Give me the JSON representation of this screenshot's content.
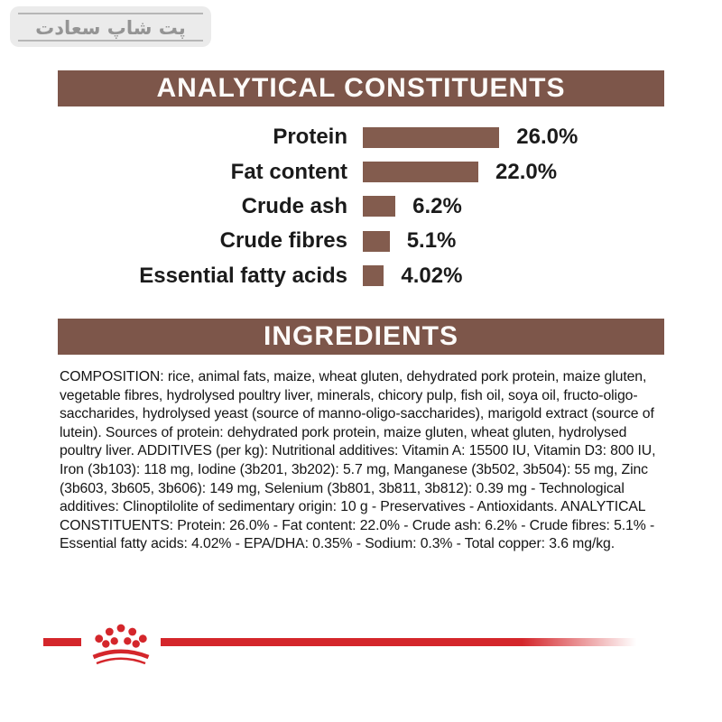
{
  "watermark": {
    "text": "پت شاپ سعادت"
  },
  "analytical": {
    "title": "ANALYTICAL CONSTITUENTS"
  },
  "chart_data": {
    "type": "bar",
    "orientation": "horizontal",
    "title": "ANALYTICAL CONSTITUENTS",
    "categories": [
      "Protein",
      "Fat content",
      "Crude ash",
      "Crude fibres",
      "Essential fatty acids"
    ],
    "values": [
      26.0,
      22.0,
      6.2,
      5.1,
      4.02
    ],
    "value_labels": [
      "26.0%",
      "22.0%",
      "6.2%",
      "5.1%",
      "4.02%"
    ],
    "unit": "%",
    "xlim": [
      0,
      30
    ],
    "bar_color": "#835c4e",
    "grid": false,
    "legend": false
  },
  "ingredients": {
    "title": "INGREDIENTS",
    "text": "COMPOSITION: rice, animal fats, maize, wheat gluten, dehydrated pork protein, maize gluten, vegetable fibres, hydrolysed poultry liver, minerals, chicory pulp, fish oil, soya oil, fructo-oligo-saccharides, hydrolysed yeast (source of manno-oligo-saccharides), marigold extract (source of lutein). Sources of protein: dehydrated pork protein, maize gluten, wheat gluten, hydrolysed poultry liver. ADDITIVES (per kg): Nutritional additives: Vitamin A: 15500 IU, Vitamin D3: 800 IU, Iron (3b103): 118 mg, Iodine (3b201, 3b202): 5.7 mg, Manganese (3b502, 3b504): 55 mg, Zinc (3b603, 3b605, 3b606): 149 mg, Selenium (3b801, 3b811, 3b812): 0.39 mg - Technological additives: Clinoptilolite of sedimentary origin: 10 g - Preservatives - Antioxidants. ANALYTICAL CONSTITUENTS: Protein: 26.0% - Fat content: 22.0% - Crude ash: 6.2% - Crude fibres: 5.1% - Essential fatty acids: 4.02% - EPA/DHA: 0.35% - Sodium: 0.3% - Total copper: 3.6 mg/kg."
  },
  "brand": {
    "logo": "royal-canin-crown",
    "accent_color": "#d4262b"
  },
  "colors": {
    "header_brown": "#7d564a",
    "bar_brown": "#835c4e",
    "watermark_gray": "#ebebeb"
  }
}
